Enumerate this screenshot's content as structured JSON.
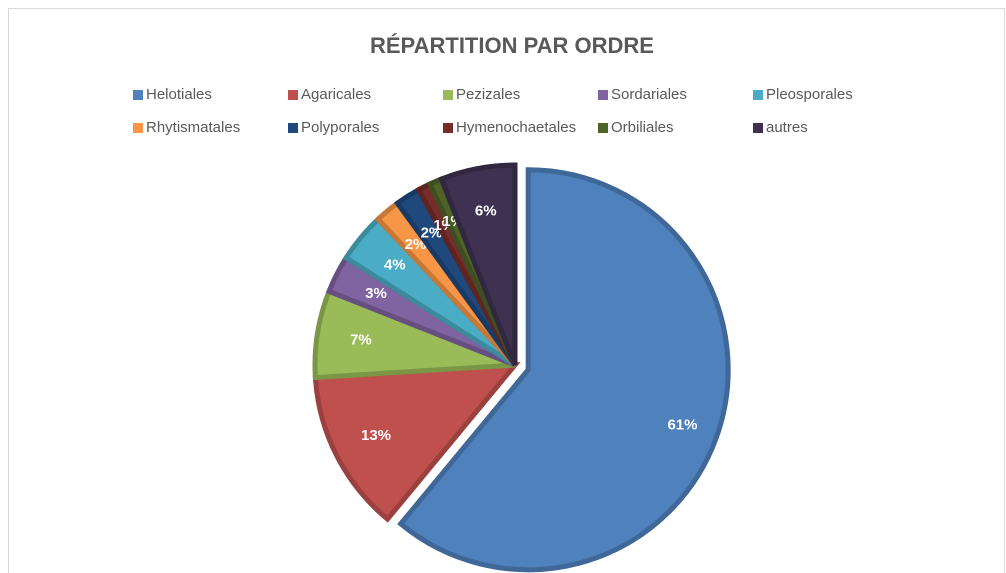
{
  "chart_data": {
    "type": "pie",
    "title": "RÉPARTITION PAR ORDRE",
    "categories": [
      "Helotiales",
      "Agaricales",
      "Pezizales",
      "Sordariales",
      "Pleosporales",
      "Rhytismatales",
      "Polyporales",
      "Hymenochaetales",
      "Orbiliales",
      "autres"
    ],
    "values": [
      61,
      13,
      7,
      3,
      4,
      2,
      2,
      1,
      1,
      6
    ],
    "value_labels": [
      "61%",
      "13%",
      "7%",
      "3%",
      "4%",
      "2%",
      "2%",
      "1%",
      "1%",
      "6%"
    ],
    "colors": [
      "#4f81bd",
      "#c0504d",
      "#9bbb59",
      "#8064a2",
      "#4bacc6",
      "#f79646",
      "#1f497d",
      "#772c2a",
      "#4f6228",
      "#3f3151"
    ],
    "legend": "top"
  }
}
